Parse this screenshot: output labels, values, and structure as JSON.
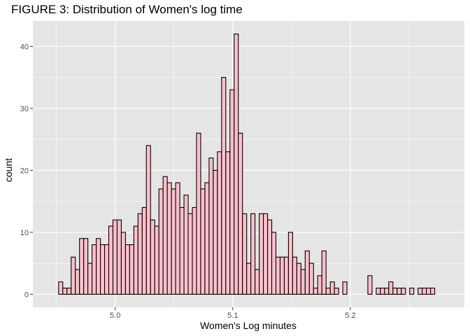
{
  "chart_data": {
    "type": "bar",
    "title": "FIGURE 3: Distribution of Women's log time",
    "xlabel": "Women's Log minutes",
    "ylabel": "count",
    "x_start": 4.9519,
    "bin_width": 0.003554,
    "counts": [
      2,
      1,
      1,
      6,
      4,
      9,
      9,
      5,
      8,
      9,
      8,
      8,
      11,
      12,
      12,
      10,
      8,
      8,
      11,
      13,
      14,
      24,
      12,
      11,
      17,
      19,
      18,
      17,
      18,
      14,
      16,
      13,
      14,
      26,
      17,
      18,
      22,
      20,
      23,
      35,
      23,
      33,
      42,
      26,
      13,
      5,
      13,
      4,
      13,
      13,
      12,
      10,
      6,
      6,
      6,
      10,
      6,
      5,
      4,
      7,
      5,
      1,
      3,
      7,
      1,
      2,
      1,
      0,
      2,
      0,
      0,
      0,
      0,
      0,
      3,
      0,
      1,
      1,
      1,
      2,
      1,
      1,
      1,
      0,
      1,
      0,
      1,
      1,
      1,
      1
    ],
    "x_ticks": [
      5.0,
      5.1,
      5.2
    ],
    "x_tick_labels": [
      "5.0",
      "5.1",
      "5.2"
    ],
    "y_ticks": [
      0,
      10,
      20,
      30,
      40
    ],
    "y_tick_labels": [
      "0",
      "10",
      "20",
      "30",
      "40"
    ],
    "xlim": [
      4.93,
      5.297
    ],
    "ylim": [
      -2.1,
      44.1
    ],
    "grid": true,
    "colors": {
      "panel": "#e5e5e5",
      "grid": "#ffffff",
      "bar_fill": "#ffc0cb",
      "bar_stroke": "#000000"
    }
  }
}
